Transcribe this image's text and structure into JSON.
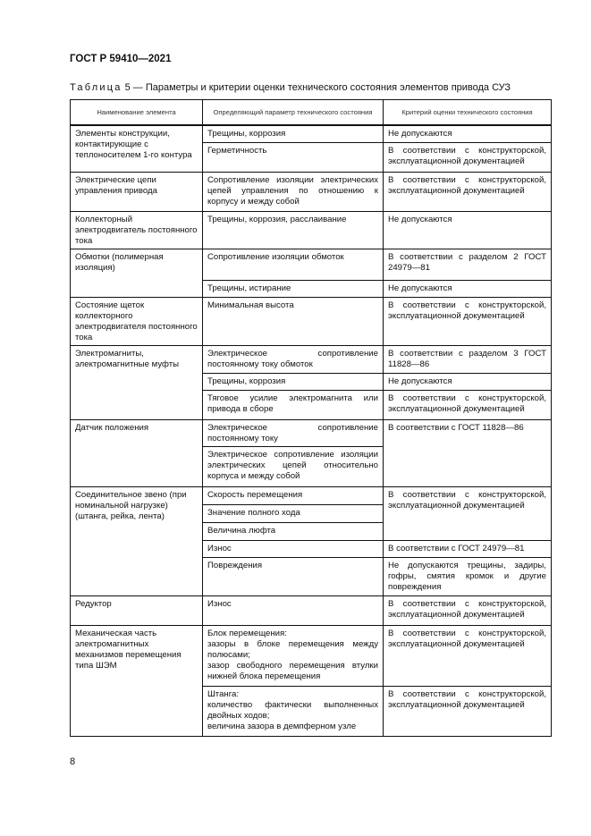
{
  "document": {
    "id": "ГОСТ Р 59410—2021",
    "caption_prefix": "Таблица",
    "caption_text": " 5 — Параметры и критерии оценки технического состояния элементов привода СУЗ",
    "page_number": "8"
  },
  "table": {
    "headers": [
      "Наименование элемента",
      "Определяющий параметр технического состояния",
      "Критерий оценки технического состояния"
    ],
    "groups": [
      {
        "element": "Элементы конструкции, контактирующие с теплоносителем 1-го контура",
        "rows": [
          {
            "param": "Трещины, коррозия",
            "criterion": "Не допускаются",
            "h": 19
          },
          {
            "param": "Герметичность",
            "criterion": "В соответствии с конструкторской, эксплуатационной документацией",
            "h": 33
          }
        ]
      },
      {
        "element": "Электрические цепи управления привода",
        "rows": [
          {
            "param": "Сопротивление изоляции электрических цепей управления по отношению к корпусу и между собой",
            "criterion": "В соответствии с конструкторской, эксплуатационной документацией",
            "h": 44
          }
        ]
      },
      {
        "element": "Коллекторный электродвигатель постоянного тока",
        "rows": [
          {
            "param": "Трещины, коррозия, расслаивание",
            "criterion": "Не допускаются",
            "h": 29
          }
        ]
      },
      {
        "element": "Обмотки (полимерная изоляция)",
        "rows": [
          {
            "param": "Сопротивление изоляции обмоток",
            "criterion": "В соответствии с разделом 2 ГОСТ 24979—81",
            "h": 35
          },
          {
            "param": "Трещины, истирание",
            "criterion": "Не допускаются",
            "h": 19
          }
        ]
      },
      {
        "element": "Состояние щеток коллекторного электродвигателя постоянного тока",
        "rows": [
          {
            "param": "Минимальная высота",
            "criterion": "В соответствии с конструкторской, эксплуатационной документацией",
            "h": 45
          }
        ]
      },
      {
        "element": "Электромагниты, электромагнитные муфты",
        "rows": [
          {
            "param": "Электрическое сопротивление постоянному току обмоток",
            "criterion": "В соответствии с разделом 3 ГОСТ 11828—86",
            "h": 31
          },
          {
            "param": "Трещины, коррозия",
            "criterion": "Не допускаются",
            "h": 19
          },
          {
            "param": "Тяговое усилие электромагнита или привода в сборе",
            "criterion": "В соответствии с конструкторской, эксплуатационной документацией",
            "h": 33
          }
        ]
      },
      {
        "element": "Датчик положения",
        "rows": [
          {
            "param": "Электрическое сопротивление постоянному току",
            "criterion": "В соответствии с ГОСТ 11828—86",
            "crit_span": 2,
            "h": 30
          },
          {
            "param": "Электрическое сопротивление изоляции электрических цепей относительно корпуса и между собой",
            "h": 45
          }
        ]
      },
      {
        "element": "Соединительное звено (при номинальной нагрузке) (штанга, рейка, лента)",
        "rows": [
          {
            "param": "Скорость перемещения",
            "criterion": "В соответствии с конструкторской, эксплуатационной документацией",
            "crit_span": 3,
            "h": 20
          },
          {
            "param": "Значение полного хода",
            "h": 20
          },
          {
            "param": "Величина люфта",
            "h": 20
          },
          {
            "param": "Износ",
            "criterion": "В соответствии с ГОСТ 24979—81",
            "h": 19
          },
          {
            "param": "Повреждения",
            "criterion": "Не допускаются трещины, задиры, гофры, смятия кромок и другие повреждения",
            "h": 43
          }
        ]
      },
      {
        "element": "Редуктор",
        "rows": [
          {
            "param": "Износ",
            "criterion": "В соответствии с конструкторской, эксплуатационной документацией",
            "h": 33
          }
        ]
      },
      {
        "element": "Механическая часть электромагнитных механизмов перемещения типа ШЭМ",
        "rows": [
          {
            "param": "Блок перемещения:\nзазоры в блоке перемещения между полюсами;\nзазор свободного перемещения втулки нижней блока перемещения",
            "criterion": "В соответствии с конструкторской, эксплуатационной документацией",
            "h": 68
          },
          {
            "param": "Штанга:\nколичество фактически выполненных двойных ходов;\nвеличина зазора в демпферном узле",
            "criterion": "В соответствии с конструкторской, эксплуатационной документацией",
            "h": 56
          }
        ]
      }
    ]
  }
}
